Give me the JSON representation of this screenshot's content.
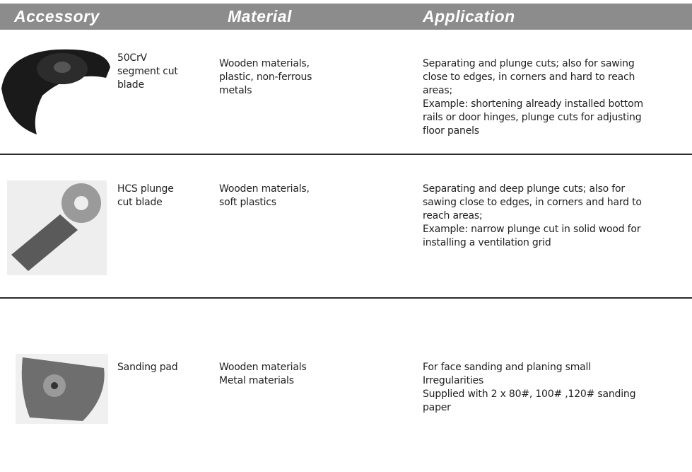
{
  "header": {
    "columns": [
      "Accessory",
      "Material",
      "Application"
    ]
  },
  "table": {
    "rows": [
      {
        "accessory": [
          "50CrV",
          "segment cut",
          "blade"
        ],
        "material": [
          "Wooden materials,",
          "plastic, non-ferrous",
          "metals"
        ],
        "application": [
          "Separating and plunge cuts; also for sawing",
          "close to edges, in corners and hard to reach",
          "areas;",
          "Example: shortening already installed bottom",
          "rails or door hinges, plunge cuts for adjusting",
          "floor panels"
        ]
      },
      {
        "accessory": [
          "HCS plunge",
          "cut blade"
        ],
        "material": [
          "Wooden materials,",
          "soft plastics"
        ],
        "application": [
          "Separating and deep plunge cuts; also for",
          "sawing close to edges, in corners and hard to",
          "reach areas;",
          "Example: narrow plunge cut in solid wood for",
          "installing a ventilation grid"
        ]
      },
      {
        "accessory": [
          "Sanding pad"
        ],
        "material": [
          "Wooden materials",
          "Metal materials"
        ],
        "application": [
          "For face sanding and planing small",
          "Irregularities",
          "Supplied with 2 x 80#, 100# ,120# sanding",
          "paper"
        ]
      }
    ]
  }
}
